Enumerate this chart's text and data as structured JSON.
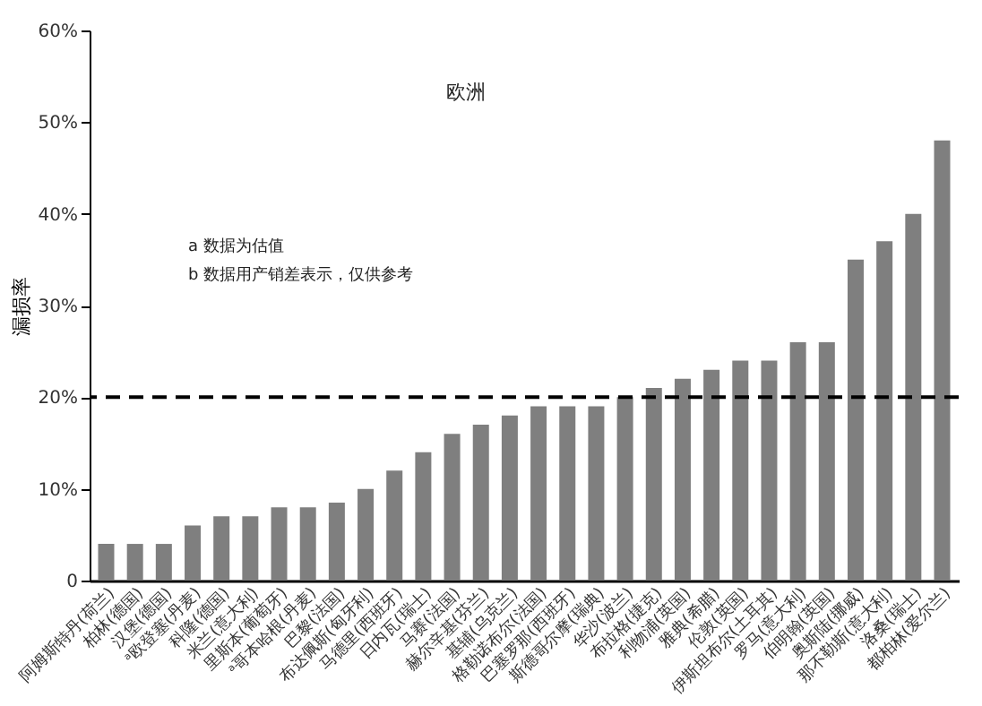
{
  "chart_data": {
    "type": "bar",
    "title": "欧洲",
    "ylabel": "漏损率",
    "categories": [
      "阿姆斯特丹(荷兰)",
      "柏林(德国)",
      "汉堡(德国)",
      "ᵃ欧登塞(丹麦)",
      "科隆(德国)",
      "米兰(意大利)",
      "里斯本(葡萄牙)",
      "ᵃ哥本哈根(丹麦)",
      "巴黎(法国)",
      "布达佩斯(匈牙利)",
      "马德里(西班牙)",
      "日内瓦(瑞士)",
      "马赛(法国)",
      "赫尔辛基(芬兰)",
      "基辅(乌克兰)",
      "格勒诺布尔(法国)",
      "巴塞罗那(西班牙)",
      "斯德哥尔摩(瑞典)",
      "华沙(波兰)",
      "布拉格(捷克)",
      "利物浦(英国)",
      "雅典(希腊)",
      "伦敦(英国)",
      "伊斯坦布尔(土耳其)",
      "罗马(意大利)",
      "伯明翰(英国)",
      "奥斯陆(挪威)",
      "那不勒斯(意大利)",
      "洛桑(瑞士)",
      "都柏林(爱尔兰)"
    ],
    "values": [
      4,
      4,
      4,
      6,
      7,
      7,
      8,
      8,
      8.5,
      10,
      12,
      14,
      16,
      17,
      18,
      19,
      19,
      19,
      20,
      21,
      22,
      23,
      24,
      24,
      26,
      26,
      35,
      37,
      40,
      48
    ],
    "color": "#7f7f7f",
    "ylim": [
      0,
      60
    ],
    "yticks": [
      {
        "value": 0,
        "label": "0"
      },
      {
        "value": 10,
        "label": "10%"
      },
      {
        "value": 20,
        "label": "20%"
      },
      {
        "value": 30,
        "label": "30%"
      },
      {
        "value": 40,
        "label": "40%"
      },
      {
        "value": 50,
        "label": "50%"
      },
      {
        "value": 60,
        "label": "60%"
      }
    ],
    "ref_lines": [
      {
        "axis": "y",
        "value": 20,
        "line_style": "dashed",
        "color": "#000000"
      }
    ],
    "annotations": [
      "a 数据为估值",
      "b 数据用产销差表示，仅供参考"
    ],
    "grid": false
  }
}
